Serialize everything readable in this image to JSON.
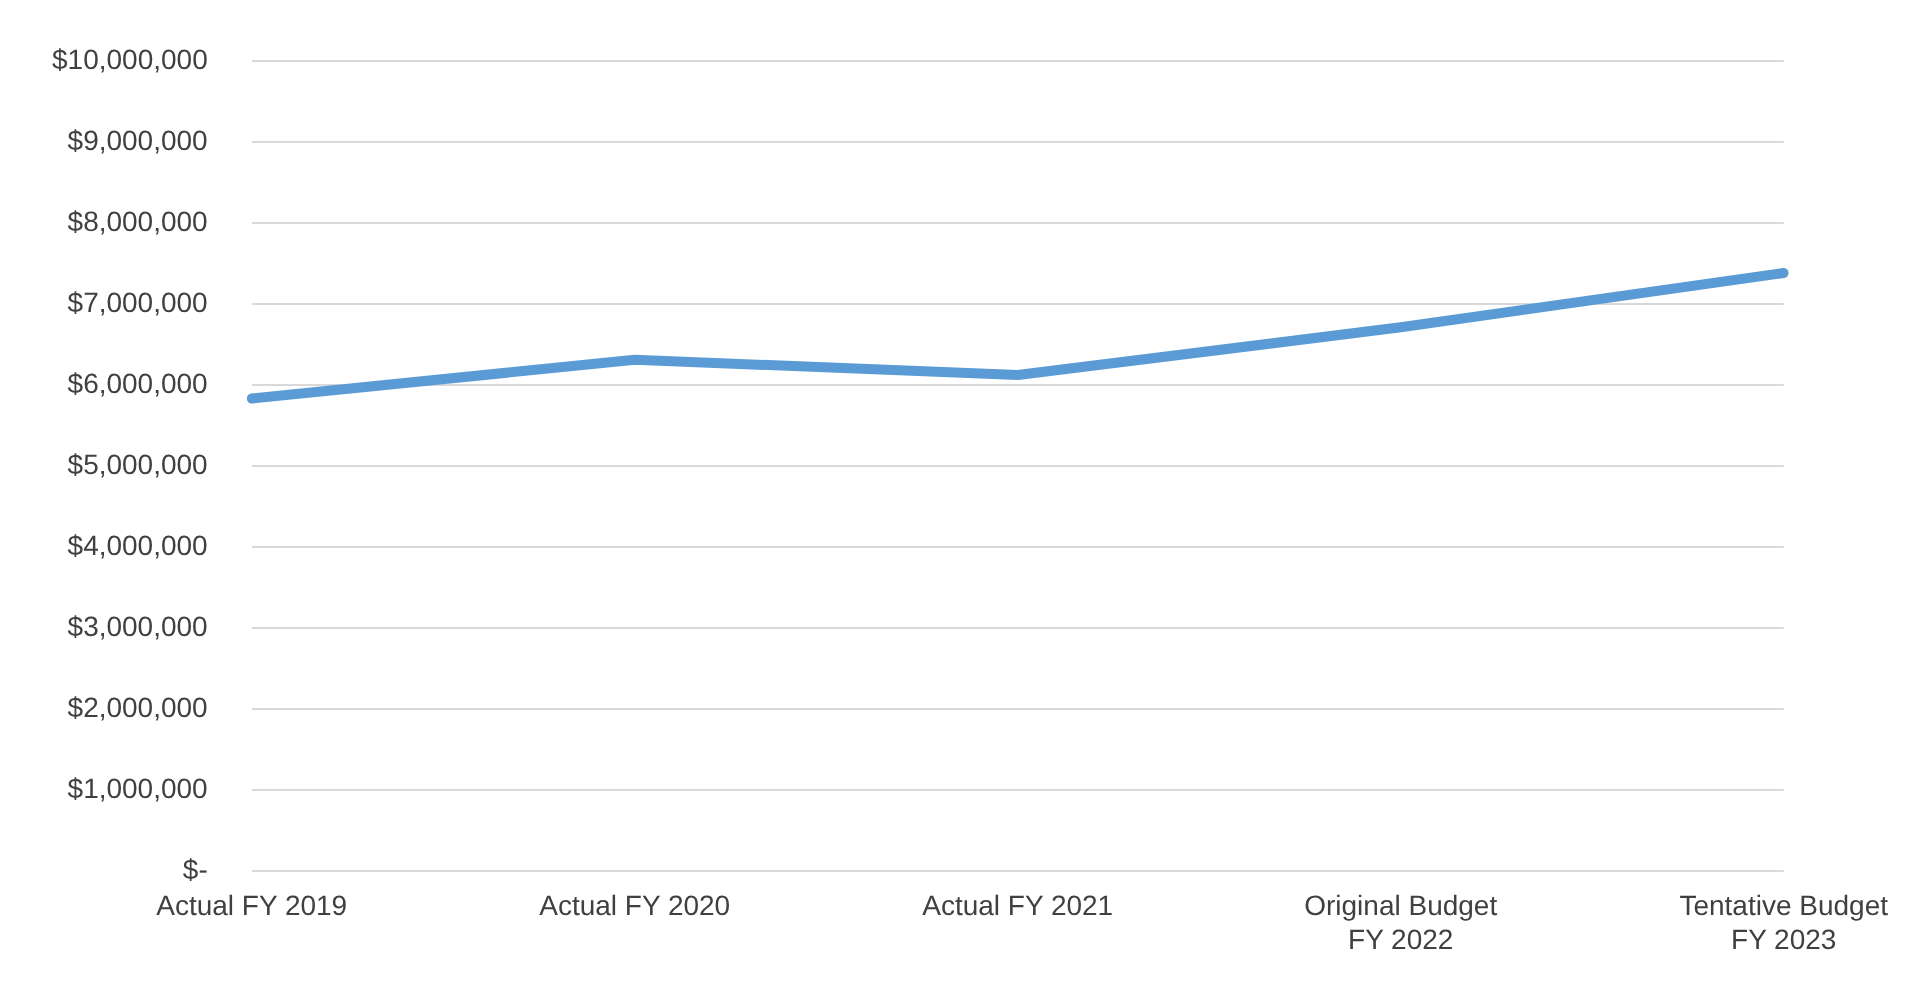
{
  "chart_data": {
    "type": "line",
    "categories": [
      "Actual FY 2019",
      "Actual FY 2020",
      "Actual FY 2021",
      "Original Budget FY 2022",
      "Tentative Budget FY 2023"
    ],
    "series": [
      {
        "color": "#5b9bd5",
        "values": [
          5830000,
          6310000,
          6120000,
          6710000,
          7380000
        ]
      }
    ],
    "ylim": [
      0,
      10000000
    ],
    "yticks": [
      {
        "value": 0,
        "label": "$-"
      },
      {
        "value": 1000000,
        "label": "$1,000,000"
      },
      {
        "value": 2000000,
        "label": "$2,000,000"
      },
      {
        "value": 3000000,
        "label": "$3,000,000"
      },
      {
        "value": 4000000,
        "label": "$4,000,000"
      },
      {
        "value": 5000000,
        "label": "$5,000,000"
      },
      {
        "value": 6000000,
        "label": "$6,000,000"
      },
      {
        "value": 7000000,
        "label": "$7,000,000"
      },
      {
        "value": 8000000,
        "label": "$8,000,000"
      },
      {
        "value": 9000000,
        "label": "$9,000,000"
      },
      {
        "value": 10000000,
        "label": "$10,000,000"
      }
    ],
    "grid": "y",
    "legend": false,
    "marker": "none",
    "line_style": "solid"
  }
}
